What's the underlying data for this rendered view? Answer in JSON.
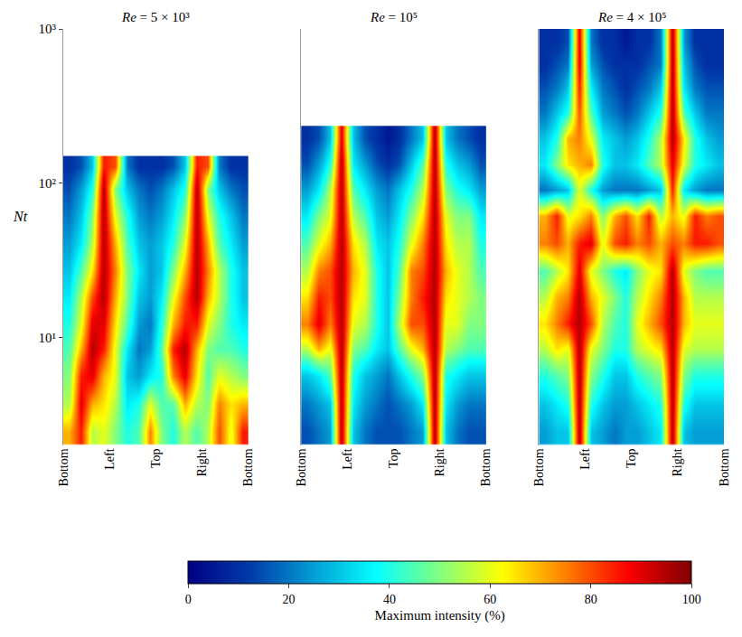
{
  "chart_data": {
    "type": "heatmap",
    "y_label": "Nt",
    "log": "y",
    "grid": true,
    "xlim": [
      0,
      4
    ],
    "xticks": [
      {
        "value": 0,
        "label": "Bottom"
      },
      {
        "value": 1,
        "label": "Left"
      },
      {
        "value": 2,
        "label": "Top"
      },
      {
        "value": 3,
        "label": "Right"
      },
      {
        "value": 4,
        "label": "Bottom"
      }
    ],
    "ylim": [
      2,
      1000
    ],
    "yticks": [
      {
        "value": 10,
        "label": "10¹"
      },
      {
        "value": 100,
        "label": "10²"
      },
      {
        "value": 1000,
        "label": "10³"
      }
    ],
    "colorbar": {
      "title": "Maximum intensity (%)",
      "range": [
        0,
        100
      ],
      "ticks": [
        0,
        20,
        40,
        60,
        80,
        100
      ]
    },
    "panels": [
      {
        "title": "Re = 5 × 10³",
        "x_edges": [
          0,
          0.25,
          0.5,
          0.75,
          1,
          1.25,
          1.5,
          1.75,
          2,
          2.25,
          2.5,
          2.75,
          3,
          3.25,
          3.5,
          3.75,
          4
        ],
        "y_edges": [
          2,
          3,
          4.5,
          7,
          10,
          15,
          22,
          33,
          50,
          75,
          110,
          150
        ],
        "cells": [
          [
            70,
            85,
            55,
            60,
            50,
            40,
            45,
            75,
            50,
            40,
            55,
            45,
            55,
            80,
            60,
            85
          ],
          [
            55,
            90,
            70,
            65,
            55,
            35,
            40,
            60,
            45,
            45,
            70,
            55,
            50,
            75,
            65,
            70
          ],
          [
            50,
            85,
            90,
            70,
            60,
            30,
            25,
            35,
            40,
            75,
            90,
            65,
            45,
            60,
            55,
            50
          ],
          [
            45,
            70,
            95,
            85,
            60,
            35,
            20,
            25,
            45,
            85,
            95,
            70,
            50,
            45,
            45,
            40
          ],
          [
            40,
            60,
            90,
            90,
            65,
            45,
            25,
            20,
            40,
            70,
            85,
            85,
            60,
            50,
            40,
            35
          ],
          [
            35,
            55,
            80,
            95,
            70,
            50,
            30,
            25,
            35,
            60,
            80,
            95,
            70,
            55,
            40,
            30
          ],
          [
            30,
            45,
            65,
            95,
            75,
            50,
            35,
            25,
            30,
            50,
            70,
            95,
            75,
            55,
            40,
            30
          ],
          [
            25,
            35,
            55,
            95,
            70,
            45,
            30,
            25,
            30,
            40,
            60,
            95,
            70,
            45,
            35,
            25
          ],
          [
            20,
            30,
            50,
            95,
            60,
            40,
            25,
            20,
            25,
            35,
            50,
            95,
            60,
            40,
            30,
            20
          ],
          [
            15,
            25,
            40,
            95,
            50,
            30,
            20,
            15,
            20,
            30,
            40,
            95,
            50,
            30,
            20,
            15
          ],
          [
            10,
            15,
            30,
            85,
            80,
            20,
            10,
            10,
            10,
            15,
            30,
            85,
            80,
            20,
            10,
            10
          ]
        ]
      },
      {
        "title": "Re = 10⁵",
        "x_edges": [
          0,
          0.25,
          0.5,
          0.75,
          1,
          1.25,
          1.5,
          1.75,
          2,
          2.25,
          2.5,
          2.75,
          3,
          3.25,
          3.5,
          3.75,
          4
        ],
        "y_edges": [
          2,
          3,
          4.5,
          7,
          10,
          15,
          22,
          33,
          50,
          75,
          110,
          160,
          235
        ],
        "cells": [
          [
            15,
            20,
            25,
            95,
            30,
            20,
            15,
            15,
            15,
            20,
            25,
            95,
            30,
            20,
            15,
            15
          ],
          [
            20,
            25,
            30,
            95,
            35,
            25,
            20,
            15,
            20,
            25,
            35,
            95,
            35,
            25,
            20,
            20
          ],
          [
            30,
            35,
            45,
            95,
            40,
            30,
            25,
            20,
            30,
            40,
            50,
            95,
            40,
            35,
            30,
            30
          ],
          [
            55,
            70,
            60,
            95,
            50,
            45,
            35,
            30,
            45,
            60,
            70,
            95,
            55,
            50,
            45,
            45
          ],
          [
            75,
            90,
            75,
            95,
            60,
            55,
            40,
            30,
            55,
            80,
            80,
            95,
            60,
            60,
            50,
            50
          ],
          [
            65,
            85,
            80,
            95,
            65,
            60,
            40,
            30,
            50,
            75,
            85,
            95,
            65,
            60,
            55,
            50
          ],
          [
            55,
            75,
            80,
            95,
            70,
            60,
            40,
            30,
            45,
            75,
            80,
            95,
            70,
            60,
            55,
            45
          ],
          [
            45,
            60,
            70,
            95,
            65,
            55,
            35,
            30,
            40,
            60,
            75,
            95,
            65,
            55,
            55,
            40
          ],
          [
            35,
            50,
            60,
            95,
            55,
            45,
            30,
            25,
            35,
            50,
            65,
            95,
            60,
            50,
            50,
            35
          ],
          [
            25,
            35,
            55,
            95,
            45,
            35,
            25,
            20,
            30,
            40,
            55,
            95,
            50,
            40,
            35,
            25
          ],
          [
            15,
            25,
            40,
            95,
            35,
            25,
            15,
            10,
            15,
            30,
            45,
            95,
            40,
            30,
            25,
            15
          ],
          [
            10,
            15,
            30,
            90,
            30,
            15,
            10,
            5,
            10,
            20,
            30,
            95,
            30,
            20,
            15,
            10
          ]
        ]
      },
      {
        "title": "Re = 4 × 10⁵",
        "x_edges": [
          0,
          0.25,
          0.5,
          0.75,
          1,
          1.25,
          1.5,
          1.75,
          2,
          2.25,
          2.5,
          2.75,
          3,
          3.25,
          3.5,
          3.75,
          4
        ],
        "y_edges": [
          2,
          3,
          4.5,
          7,
          10,
          15,
          22,
          33,
          50,
          75,
          110,
          160,
          235,
          350,
          500,
          700,
          1000
        ],
        "cells": [
          [
            25,
            30,
            30,
            95,
            30,
            25,
            20,
            25,
            25,
            30,
            35,
            95,
            30,
            25,
            25,
            25
          ],
          [
            30,
            35,
            40,
            95,
            40,
            30,
            25,
            25,
            30,
            35,
            40,
            95,
            40,
            30,
            30,
            30
          ],
          [
            40,
            45,
            50,
            95,
            50,
            40,
            30,
            30,
            40,
            45,
            50,
            95,
            50,
            40,
            40,
            40
          ],
          [
            55,
            65,
            60,
            95,
            60,
            50,
            40,
            40,
            55,
            60,
            65,
            95,
            60,
            55,
            55,
            55
          ],
          [
            65,
            75,
            85,
            95,
            80,
            55,
            45,
            40,
            60,
            70,
            80,
            95,
            70,
            60,
            60,
            60
          ],
          [
            55,
            70,
            75,
            95,
            70,
            60,
            50,
            40,
            55,
            65,
            75,
            95,
            70,
            55,
            55,
            55
          ],
          [
            45,
            55,
            65,
            90,
            60,
            50,
            40,
            35,
            50,
            60,
            65,
            95,
            60,
            50,
            45,
            45
          ],
          [
            75,
            80,
            70,
            85,
            90,
            60,
            80,
            85,
            75,
            80,
            70,
            80,
            75,
            85,
            85,
            80
          ],
          [
            70,
            85,
            60,
            65,
            75,
            50,
            70,
            80,
            65,
            85,
            55,
            70,
            60,
            85,
            75,
            80
          ],
          [
            20,
            25,
            30,
            60,
            40,
            25,
            20,
            20,
            20,
            25,
            30,
            85,
            35,
            25,
            20,
            20
          ],
          [
            35,
            50,
            65,
            70,
            75,
            40,
            30,
            30,
            35,
            45,
            55,
            90,
            60,
            40,
            35,
            30
          ],
          [
            30,
            40,
            70,
            75,
            60,
            35,
            30,
            25,
            30,
            40,
            55,
            95,
            65,
            40,
            30,
            25
          ],
          [
            20,
            30,
            40,
            80,
            45,
            25,
            20,
            15,
            20,
            30,
            40,
            95,
            45,
            30,
            20,
            20
          ],
          [
            15,
            20,
            30,
            85,
            35,
            20,
            15,
            10,
            15,
            20,
            30,
            95,
            35,
            20,
            15,
            15
          ],
          [
            10,
            15,
            20,
            90,
            25,
            15,
            10,
            10,
            10,
            15,
            20,
            95,
            30,
            15,
            10,
            10
          ],
          [
            10,
            10,
            15,
            90,
            20,
            10,
            10,
            5,
            10,
            10,
            20,
            95,
            25,
            10,
            10,
            10
          ]
        ]
      }
    ]
  }
}
